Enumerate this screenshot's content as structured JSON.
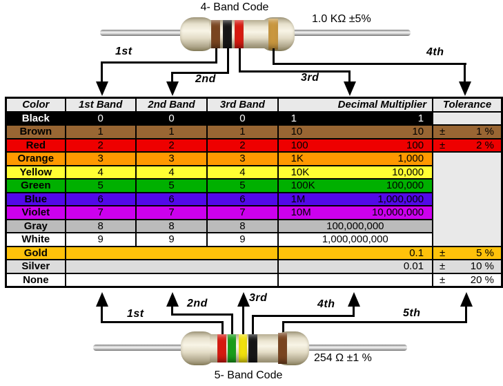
{
  "top_resistor": {
    "title": "4- Band Code",
    "value_label": "1.0 KΩ  ±5%",
    "bands": [
      {
        "name": "brown",
        "hex": "#7a4520"
      },
      {
        "name": "black",
        "hex": "#161616"
      },
      {
        "name": "red",
        "hex": "#d81a10"
      },
      {
        "name": "gold",
        "hex": "#c9973f"
      }
    ],
    "arrow_labels": [
      "1st",
      "2nd",
      "3rd",
      "4th"
    ]
  },
  "bottom_resistor": {
    "title": "5- Band Code",
    "value_label": "254 Ω  ±1 %",
    "bands": [
      {
        "name": "red",
        "hex": "#d81a10"
      },
      {
        "name": "green",
        "hex": "#1a9e1a"
      },
      {
        "name": "yellow",
        "hex": "#f2e20e"
      },
      {
        "name": "black",
        "hex": "#161616"
      },
      {
        "name": "brown",
        "hex": "#7a4520"
      }
    ],
    "arrow_labels": [
      "1st",
      "2nd",
      "3rd",
      "4th",
      "5th"
    ]
  },
  "table": {
    "headers": [
      "Color",
      "1st Band",
      "2nd Band",
      "3rd Band",
      "Decimal Multiplier",
      "Tolerance"
    ],
    "empty_cell_color": "#e9e9e9",
    "rows": [
      {
        "name": "Black",
        "bg": "#000000",
        "fg": "#ffffff",
        "bands": [
          "0",
          "0",
          "0"
        ],
        "mult_short": "1",
        "mult_long": "1",
        "tolerance": ""
      },
      {
        "name": "Brown",
        "bg": "#996633",
        "bands": [
          "1",
          "1",
          "1"
        ],
        "mult_short": "10",
        "mult_long": "10",
        "tolerance": "± 1 %"
      },
      {
        "name": "Red",
        "bg": "#ee0000",
        "bands": [
          "2",
          "2",
          "2"
        ],
        "mult_short": "100",
        "mult_long": "100",
        "tolerance": "± 2 %"
      },
      {
        "name": "Orange",
        "bg": "#ff9900",
        "bands": [
          "3",
          "3",
          "3"
        ],
        "mult_short": "1K",
        "mult_long": "1,000",
        "tolerance": ""
      },
      {
        "name": "Yellow",
        "bg": "#ffff33",
        "bands": [
          "4",
          "4",
          "4"
        ],
        "mult_short": "10K",
        "mult_long": "10,000",
        "tolerance": ""
      },
      {
        "name": "Green",
        "bg": "#00b000",
        "bands": [
          "5",
          "5",
          "5"
        ],
        "mult_short": "100K",
        "mult_long": "100,000",
        "tolerance": ""
      },
      {
        "name": "Blue",
        "bg": "#5209e8",
        "bands": [
          "6",
          "6",
          "6"
        ],
        "mult_short": "1M",
        "mult_long": "1,000,000",
        "tolerance": ""
      },
      {
        "name": "Violet",
        "bg": "#cc00ee",
        "bands": [
          "7",
          "7",
          "7"
        ],
        "mult_short": "10M",
        "mult_long": "10,000,000",
        "tolerance": ""
      },
      {
        "name": "Gray",
        "bg": "#bbbbbb",
        "bands": [
          "8",
          "8",
          "8"
        ],
        "mult_short": "",
        "mult_long": "100,000,000",
        "tolerance": ""
      },
      {
        "name": "White",
        "bg": "#ffffff",
        "bands": [
          "9",
          "9",
          "9"
        ],
        "mult_short": "",
        "mult_long": "1,000,000,000",
        "tolerance": ""
      },
      {
        "name": "Gold",
        "bg": "#ffc20a",
        "bands": null,
        "mult_short": "",
        "mult_long": "0.1",
        "tolerance": "± 5 %"
      },
      {
        "name": "Silver",
        "bg": "#dcdcdc",
        "bands": null,
        "mult_short": "",
        "mult_long": "0.01",
        "tolerance": "± 10 %"
      },
      {
        "name": "None",
        "bg": "#ffffff",
        "bands": null,
        "mult_short": "",
        "mult_long": "",
        "tolerance": "± 20 %"
      }
    ]
  }
}
